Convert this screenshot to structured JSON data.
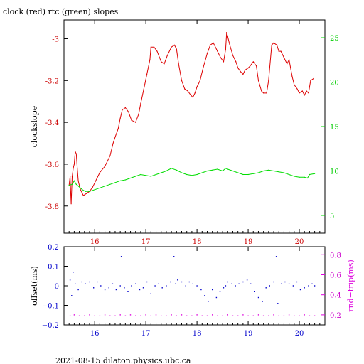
{
  "figure": {
    "title": "clock (red) rtc (green) slopes",
    "footer": "2021-08-15  dilaton.physics.ubc.ca"
  },
  "colors": {
    "clock": "#dd0000",
    "rtc": "#00dd00",
    "offset": "#0000cc",
    "rnd_trip": "#dd00dd",
    "frame": "#000000"
  },
  "chart_data": [
    {
      "type": "line",
      "title": "clock (red) rtc (green) slopes",
      "xlabel": "",
      "ylabel": "clockslope",
      "y2label": "",
      "xlim": [
        15.4,
        20.5
      ],
      "ylim": [
        -3.93,
        -2.91
      ],
      "y2lim": [
        3.0,
        27.0
      ],
      "xticks": [
        "16",
        "17",
        "18",
        "19",
        "20"
      ],
      "xtick_values": [
        16,
        17,
        18,
        19,
        20
      ],
      "yticks": [
        "-3",
        "-3.2",
        "-3.4",
        "-3.6",
        "-3.8"
      ],
      "ytick_values": [
        -3.0,
        -3.2,
        -3.4,
        -3.6,
        -3.8
      ],
      "y2ticks": [
        "25",
        "20",
        "15",
        "10",
        "5"
      ],
      "y2tick_values": [
        25,
        20,
        15,
        10,
        5
      ],
      "grid": false,
      "series": [
        {
          "name": "clock",
          "axis": "left",
          "color": "#dd0000",
          "x": [
            15.5,
            15.52,
            15.54,
            15.56,
            15.58,
            15.6,
            15.62,
            15.64,
            15.66,
            15.68,
            15.72,
            15.78,
            15.84,
            15.9,
            15.96,
            16.02,
            16.1,
            16.2,
            16.3,
            16.36,
            16.4,
            16.46,
            16.5,
            16.54,
            16.6,
            16.66,
            16.72,
            16.8,
            16.86,
            16.9,
            16.96,
            17.02,
            17.08,
            17.1,
            17.16,
            17.22,
            17.3,
            17.36,
            17.42,
            17.5,
            17.56,
            17.6,
            17.64,
            17.7,
            17.76,
            17.82,
            17.88,
            17.92,
            17.96,
            18.0,
            18.06,
            18.12,
            18.2,
            18.26,
            18.32,
            18.4,
            18.46,
            18.52,
            18.56,
            18.58,
            18.6,
            18.64,
            18.7,
            18.76,
            18.8,
            18.86,
            18.9,
            18.94,
            19.0,
            19.04,
            19.1,
            19.16,
            19.2,
            19.26,
            19.3,
            19.36,
            19.4,
            19.46,
            19.5,
            19.56,
            19.6,
            19.64,
            19.7,
            19.76,
            19.8,
            19.86,
            19.9,
            19.96,
            20.0,
            20.06,
            20.1,
            20.14,
            20.18,
            20.22,
            20.28
          ],
          "y": [
            -3.7,
            -3.66,
            -3.79,
            -3.66,
            -3.62,
            -3.6,
            -3.54,
            -3.55,
            -3.62,
            -3.68,
            -3.72,
            -3.75,
            -3.74,
            -3.73,
            -3.71,
            -3.68,
            -3.64,
            -3.61,
            -3.56,
            -3.5,
            -3.47,
            -3.43,
            -3.38,
            -3.34,
            -3.33,
            -3.35,
            -3.39,
            -3.4,
            -3.36,
            -3.31,
            -3.24,
            -3.17,
            -3.1,
            -3.04,
            -3.04,
            -3.06,
            -3.11,
            -3.12,
            -3.08,
            -3.04,
            -3.03,
            -3.05,
            -3.12,
            -3.2,
            -3.24,
            -3.25,
            -3.27,
            -3.28,
            -3.26,
            -3.23,
            -3.2,
            -3.14,
            -3.07,
            -3.03,
            -3.02,
            -3.06,
            -3.09,
            -3.11,
            -3.05,
            -2.97,
            -2.99,
            -3.03,
            -3.08,
            -3.11,
            -3.14,
            -3.16,
            -3.17,
            -3.15,
            -3.14,
            -3.13,
            -3.11,
            -3.13,
            -3.2,
            -3.25,
            -3.26,
            -3.26,
            -3.2,
            -3.03,
            -3.02,
            -3.03,
            -3.06,
            -3.06,
            -3.09,
            -3.12,
            -3.1,
            -3.18,
            -3.22,
            -3.24,
            -3.26,
            -3.25,
            -3.27,
            -3.25,
            -3.26,
            -3.2,
            -3.19
          ]
        },
        {
          "name": "rtc",
          "axis": "right",
          "color": "#00dd00",
          "x": [
            15.5,
            15.56,
            15.6,
            15.64,
            15.7,
            15.76,
            15.82,
            15.9,
            16.0,
            16.1,
            16.2,
            16.3,
            16.4,
            16.5,
            16.6,
            16.7,
            16.8,
            16.9,
            17.0,
            17.1,
            17.2,
            17.3,
            17.4,
            17.5,
            17.6,
            17.7,
            17.8,
            17.9,
            18.0,
            18.1,
            18.2,
            18.3,
            18.4,
            18.5,
            18.56,
            18.6,
            18.7,
            18.8,
            18.9,
            19.0,
            19.1,
            19.2,
            19.3,
            19.4,
            19.5,
            19.6,
            19.7,
            19.8,
            19.9,
            20.0,
            20.1,
            20.16,
            20.2,
            20.3
          ],
          "y": [
            8.4,
            8.5,
            8.9,
            8.5,
            8.2,
            7.9,
            7.7,
            7.7,
            7.9,
            8.1,
            8.3,
            8.5,
            8.7,
            8.9,
            9.0,
            9.2,
            9.4,
            9.6,
            9.5,
            9.4,
            9.6,
            9.8,
            10.0,
            10.3,
            10.1,
            9.8,
            9.6,
            9.5,
            9.6,
            9.8,
            10.0,
            10.1,
            10.2,
            10.0,
            10.3,
            10.2,
            10.0,
            9.8,
            9.6,
            9.6,
            9.7,
            9.8,
            10.0,
            10.1,
            10.0,
            9.9,
            9.8,
            9.6,
            9.4,
            9.3,
            9.3,
            9.2,
            9.6,
            9.7
          ]
        }
      ]
    },
    {
      "type": "scatter",
      "title": "",
      "xlabel": "",
      "ylabel": "offset(ms)",
      "y2label": "rnd−trip(ms)",
      "xlim": [
        15.4,
        20.5
      ],
      "ylim": [
        -0.2,
        0.2
      ],
      "y2lim": [
        0.1,
        0.88
      ],
      "xticks": [
        "16",
        "17",
        "18",
        "19",
        "20"
      ],
      "xtick_values": [
        16,
        17,
        18,
        19,
        20
      ],
      "yticks": [
        "0.2",
        "0.1",
        "0",
        "−0.1",
        "−0.2"
      ],
      "ytick_values": [
        0.2,
        0.1,
        0.0,
        -0.1,
        -0.2
      ],
      "y2ticks": [
        "0.8",
        "0.6",
        "0.4",
        "0.2"
      ],
      "y2tick_values": [
        0.8,
        0.6,
        0.4,
        0.2
      ],
      "grid": false,
      "series": [
        {
          "name": "offset",
          "axis": "left",
          "color": "#0000cc",
          "x": [
            15.52,
            15.55,
            15.58,
            15.62,
            15.68,
            15.75,
            15.82,
            15.9,
            15.98,
            16.05,
            16.12,
            16.2,
            16.28,
            16.35,
            16.42,
            16.5,
            16.52,
            16.58,
            16.65,
            16.72,
            16.8,
            16.88,
            16.95,
            17.02,
            17.1,
            17.18,
            17.25,
            17.32,
            17.4,
            17.48,
            17.55,
            17.58,
            17.62,
            17.7,
            17.78,
            17.85,
            17.92,
            18.0,
            18.08,
            18.15,
            18.22,
            18.3,
            18.38,
            18.45,
            18.52,
            18.56,
            18.6,
            18.68,
            18.75,
            18.82,
            18.9,
            18.98,
            19.05,
            19.12,
            19.2,
            19.28,
            19.35,
            19.42,
            19.5,
            19.55,
            19.58,
            19.65,
            19.72,
            19.8,
            19.88,
            19.95,
            20.02,
            20.1,
            20.18,
            20.25,
            20.3
          ],
          "y": [
            0.03,
            -0.05,
            0.07,
            0.01,
            -0.02,
            0.02,
            0.01,
            0.02,
            -0.01,
            0.02,
            0.0,
            -0.02,
            -0.01,
            0.01,
            -0.02,
            0.0,
            0.15,
            -0.01,
            -0.03,
            0.0,
            0.01,
            -0.02,
            -0.01,
            0.02,
            -0.04,
            0.0,
            0.01,
            -0.01,
            0.0,
            0.02,
            0.15,
            0.01,
            0.03,
            0.02,
            0.0,
            0.02,
            0.01,
            0.0,
            -0.02,
            -0.05,
            -0.08,
            -0.02,
            -0.06,
            -0.03,
            -0.01,
            0.0,
            0.02,
            0.01,
            0.0,
            0.01,
            0.02,
            0.03,
            0.01,
            -0.03,
            -0.06,
            -0.08,
            -0.01,
            0.0,
            0.02,
            0.15,
            -0.09,
            0.01,
            0.02,
            0.01,
            0.0,
            0.02,
            -0.02,
            -0.01,
            0.0,
            0.01,
            0.0
          ]
        },
        {
          "name": "rnd_trip",
          "axis": "right",
          "color": "#dd00dd",
          "x": [
            15.52,
            15.6,
            15.7,
            15.8,
            15.9,
            16.0,
            16.1,
            16.2,
            16.3,
            16.4,
            16.5,
            16.6,
            16.7,
            16.8,
            16.9,
            17.0,
            17.1,
            17.2,
            17.3,
            17.4,
            17.5,
            17.6,
            17.7,
            17.8,
            17.9,
            18.0,
            18.1,
            18.2,
            18.3,
            18.4,
            18.5,
            18.6,
            18.7,
            18.8,
            18.9,
            19.0,
            19.1,
            19.2,
            19.3,
            19.4,
            19.5,
            19.6,
            19.7,
            19.8,
            19.9,
            20.0,
            20.1,
            20.2,
            20.3
          ],
          "y": [
            0.19,
            0.2,
            0.19,
            0.19,
            0.2,
            0.19,
            0.19,
            0.2,
            0.19,
            0.19,
            0.2,
            0.19,
            0.2,
            0.19,
            0.19,
            0.2,
            0.19,
            0.2,
            0.19,
            0.19,
            0.2,
            0.19,
            0.2,
            0.19,
            0.19,
            0.2,
            0.19,
            0.19,
            0.2,
            0.19,
            0.19,
            0.2,
            0.19,
            0.19,
            0.2,
            0.19,
            0.19,
            0.2,
            0.19,
            0.19,
            0.2,
            0.19,
            0.19,
            0.2,
            0.19,
            0.19,
            0.2,
            0.19,
            0.19
          ]
        }
      ]
    }
  ]
}
